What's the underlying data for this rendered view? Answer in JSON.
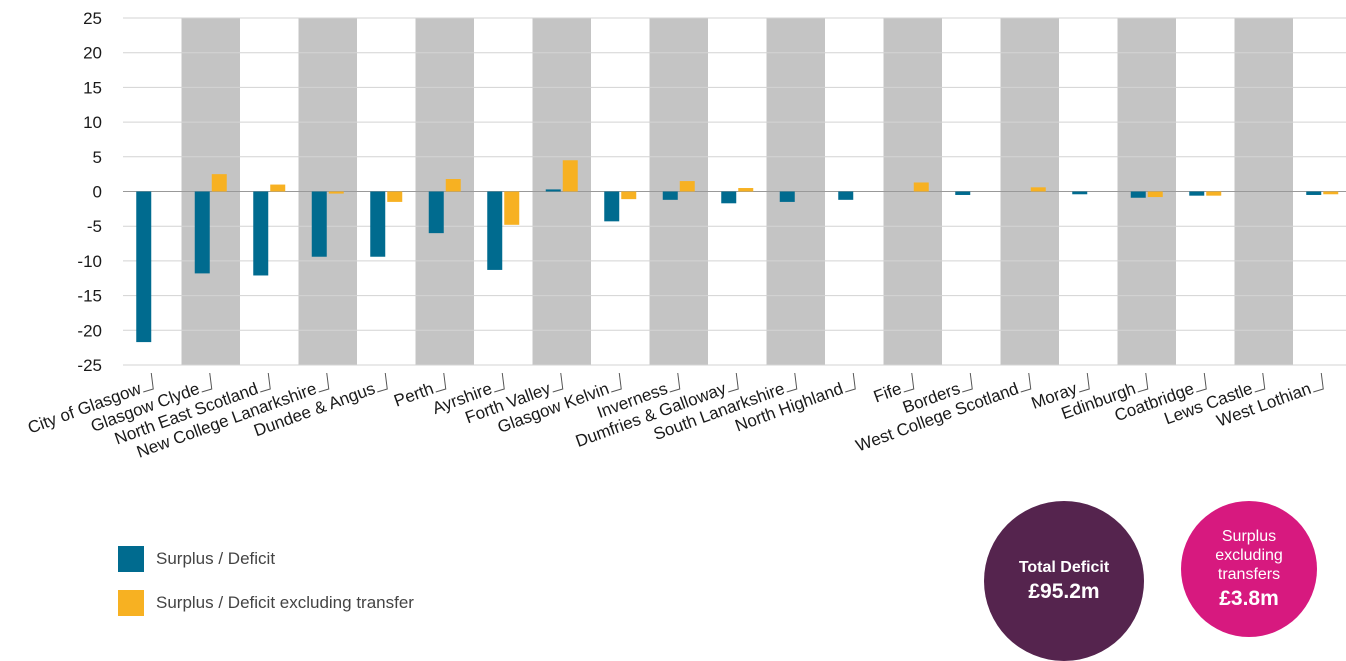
{
  "chart_data": {
    "type": "bar",
    "categories": [
      "City of Glasgow",
      "Glasgow Clyde",
      "North East Scotland",
      "New College Lanarkshire",
      "Dundee & Angus",
      "Perth",
      "Ayrshire",
      "Forth Valley",
      "Glasgow Kelvin",
      "Inverness",
      "Dumfries & Galloway",
      "South Lanarkshire",
      "North Highland",
      "Fife",
      "Borders",
      "West College Scotland",
      "Moray",
      "Edinburgh",
      "Coatbridge",
      "Lews Castle",
      "West Lothian"
    ],
    "series": [
      {
        "name": "Surplus / Deficit",
        "color": "#006b8f",
        "values": [
          -21.7,
          -11.8,
          -12.1,
          -9.4,
          -9.4,
          -6.0,
          -11.3,
          0.3,
          -4.3,
          -1.2,
          -1.7,
          -1.5,
          -1.2,
          0.0,
          -0.5,
          0.0,
          -0.4,
          -0.9,
          -0.6,
          0.0,
          -0.5
        ]
      },
      {
        "name": "Surplus / Deficit excluding transfer",
        "color": "#f7b122",
        "values": [
          0.0,
          2.5,
          1.0,
          -0.3,
          -1.5,
          1.8,
          -4.8,
          4.5,
          -1.1,
          1.5,
          0.5,
          0.0,
          0.0,
          1.3,
          0.0,
          0.6,
          0.0,
          -0.8,
          -0.6,
          0.0,
          -0.4
        ]
      }
    ],
    "ylim": [
      -25,
      25
    ],
    "yticks": [
      25,
      20,
      15,
      10,
      5,
      0,
      -5,
      -10,
      -15,
      -20,
      -25
    ],
    "title": "",
    "xlabel": "",
    "ylabel": "",
    "grid": true,
    "band_color": "#c4c4c4",
    "legend_position": "bottom-left"
  },
  "legend": {
    "items": [
      {
        "label": "Surplus / Deficit",
        "color": "#006b8f"
      },
      {
        "label": "Surplus / Deficit excluding transfer",
        "color": "#f7b122"
      }
    ]
  },
  "summary": {
    "deficit": {
      "label": "Total Deficit",
      "value": "£95.2m",
      "color": "#55244e"
    },
    "surplus": {
      "label_line1": "Surplus",
      "label_line2": "excluding",
      "label_line3": "transfers",
      "value": "£3.8m",
      "color": "#d7197f"
    }
  }
}
